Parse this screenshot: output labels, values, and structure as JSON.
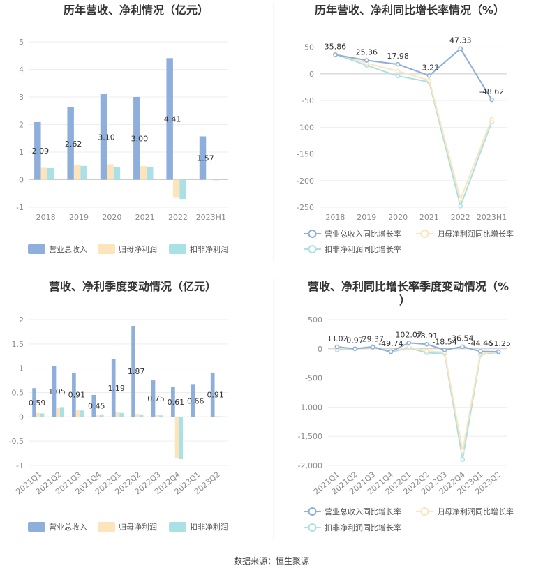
{
  "source": "数据来源：恒生聚源",
  "chart_data": [
    {
      "type": "bar",
      "title": "历年营收、净利情况（亿元）",
      "categories": [
        "2018",
        "2019",
        "2020",
        "2021",
        "2022",
        "2023H1"
      ],
      "ylim": [
        -1,
        5
      ],
      "yticks": [
        "-1",
        "0",
        "1",
        "2",
        "3",
        "4",
        "5"
      ],
      "series": [
        {
          "name": "营业总收入",
          "color": "#8eaedb",
          "values": [
            2.09,
            2.62,
            3.1,
            3.0,
            4.41,
            1.57
          ],
          "labels": [
            "2.09",
            "2.62",
            "3.10",
            "3.00",
            "4.41",
            "1.57"
          ]
        },
        {
          "name": "归母净利润",
          "color": "#fde4bb",
          "values": [
            0.43,
            0.52,
            0.56,
            0.49,
            -0.66,
            0.0
          ]
        },
        {
          "name": "扣非净利润",
          "color": "#a9e1e4",
          "values": [
            0.42,
            0.5,
            0.47,
            0.46,
            -0.7,
            -0.02
          ]
        }
      ]
    },
    {
      "type": "line",
      "title": "历年营收、净利同比增长率情况（%）",
      "categories": [
        "2018",
        "2019",
        "2020",
        "2021",
        "2022",
        "2023H1"
      ],
      "ylim": [
        -250,
        60
      ],
      "yticks": [
        "50",
        "0",
        "-50",
        "-100",
        "-150",
        "-200",
        "-250"
      ],
      "series": [
        {
          "name": "营业总收入同比增长率",
          "color": "#8eaedb",
          "values": [
            35.86,
            25.36,
            17.98,
            -3.23,
            47.33,
            -48.62
          ],
          "labels": [
            "35.86",
            "25.36",
            "17.98",
            "-3.23",
            "47.33",
            "-48.62"
          ]
        },
        {
          "name": "归母净利润同比增长率",
          "color": "#fde4bb",
          "values": [
            38,
            20,
            5,
            -12,
            -235,
            -85
          ]
        },
        {
          "name": "扣非净利润同比增长率",
          "color": "#a9e1e4",
          "values": [
            37,
            16,
            -4,
            -15,
            -248,
            -90
          ]
        }
      ]
    },
    {
      "type": "bar",
      "title": "营收、净利季度变动情况（亿元）",
      "categories": [
        "2021Q1",
        "2021Q2",
        "2021Q3",
        "2021Q4",
        "2022Q1",
        "2022Q2",
        "2022Q3",
        "2022Q4",
        "2023Q1",
        "2023Q2"
      ],
      "ylim": [
        -1,
        2
      ],
      "yticks": [
        "-1",
        "-0.5",
        "0",
        "0.5",
        "1",
        "1.5",
        "2"
      ],
      "series": [
        {
          "name": "营业总收入",
          "color": "#8eaedb",
          "values": [
            0.59,
            1.05,
            0.91,
            0.45,
            1.19,
            1.87,
            0.75,
            0.61,
            0.66,
            0.91
          ],
          "labels": [
            "0.59",
            "1.05",
            "0.91",
            "0.45",
            "1.19",
            "1.87",
            "0.75",
            "0.61",
            "0.66",
            "0.91"
          ]
        },
        {
          "name": "归母净利润",
          "color": "#fde4bb",
          "values": [
            0.08,
            0.19,
            0.14,
            0.03,
            0.09,
            0.06,
            0.04,
            -0.85,
            0.0,
            0.02
          ]
        },
        {
          "name": "扣非净利润",
          "color": "#a9e1e4",
          "values": [
            0.07,
            0.2,
            0.13,
            0.05,
            0.08,
            0.05,
            0.03,
            -0.87,
            0.0,
            0.01
          ]
        }
      ]
    },
    {
      "type": "line",
      "title": "营收、净利同比增长率季度变动情况（%",
      "title2": "）",
      "categories": [
        "2021Q1",
        "2021Q2",
        "2021Q3",
        "2021Q4",
        "2022Q1",
        "2022Q2",
        "2022Q3",
        "2022Q4",
        "2023Q1",
        "2023Q2"
      ],
      "ylim": [
        -2000,
        500
      ],
      "yticks": [
        "500",
        "0",
        "-500",
        "-1,000",
        "-1,500",
        "-2,000"
      ],
      "series": [
        {
          "name": "营业总收入同比增长率",
          "color": "#8eaedb",
          "values": [
            33.02,
            0.97,
            29.37,
            -49.74,
            102.07,
            78.91,
            -18.54,
            36.54,
            -44.46,
            -51.25
          ],
          "labels": [
            "33.02",
            "0.97",
            "29.37",
            "-49.74",
            "102.07",
            "78.91",
            "-18.54",
            "36.54",
            "-44.46",
            "-51.25"
          ]
        },
        {
          "name": "归母净利润同比增长率",
          "color": "#fde4bb",
          "values": [
            10,
            5,
            20,
            -40,
            30,
            -40,
            -60,
            -1750,
            -80,
            -50
          ]
        },
        {
          "name": "扣非净利润同比增长率",
          "color": "#a9e1e4",
          "values": [
            -20,
            0,
            40,
            -60,
            20,
            -70,
            -80,
            -1900,
            -100,
            -60
          ]
        }
      ]
    }
  ]
}
